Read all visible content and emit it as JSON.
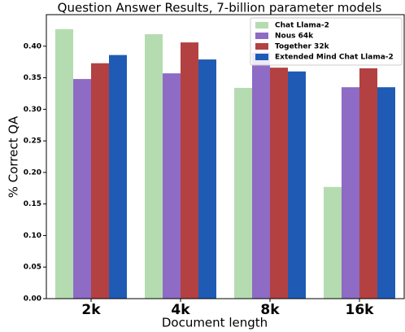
{
  "chart_data": {
    "type": "bar",
    "title": "Question Answer Results, 7-billion parameter models",
    "x_label": "Document length",
    "y_label": "% Correct QA",
    "categories": [
      "2k",
      "4k",
      "8k",
      "16k"
    ],
    "series": [
      {
        "name": "Chat Llama-2",
        "color": "#b5dcb0",
        "values": [
          0.427,
          0.419,
          0.334,
          0.177
        ]
      },
      {
        "name": "Nous 64k",
        "color": "#8e6bc4",
        "values": [
          0.348,
          0.357,
          0.39,
          0.335
        ]
      },
      {
        "name": "Together 32k",
        "color": "#b34141",
        "values": [
          0.373,
          0.406,
          0.366,
          0.365
        ]
      },
      {
        "name": "Extended Mind Chat Llama-2",
        "color": "#1f5bb5",
        "values": [
          0.386,
          0.379,
          0.36,
          0.335
        ]
      }
    ],
    "ylim": [
      0,
      0.45
    ],
    "yticks": [
      {
        "value": 0,
        "label": "0.00"
      },
      {
        "value": 0.05,
        "label": "0.05"
      },
      {
        "value": 0.1,
        "label": "0.10"
      },
      {
        "value": 0.15,
        "label": "0.15"
      },
      {
        "value": 0.2,
        "label": "0.20"
      },
      {
        "value": 0.25,
        "label": "0.25"
      },
      {
        "value": 0.3,
        "label": "0.30"
      },
      {
        "value": 0.35,
        "label": "0.35"
      },
      {
        "value": 0.4,
        "label": "0.40"
      }
    ],
    "legend": "upper right"
  }
}
